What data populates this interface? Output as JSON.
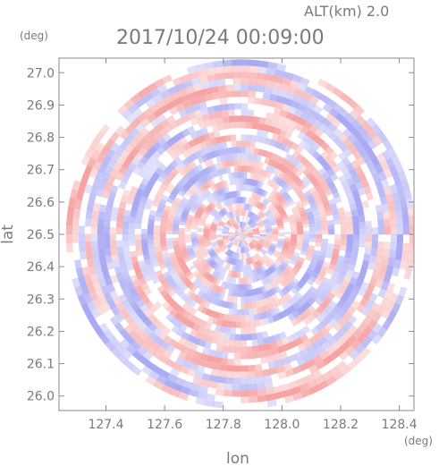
{
  "header": {
    "altitude_label": "ALT(km) 2.0",
    "timestamp": "2017/10/24 00:09:00"
  },
  "chart_data": {
    "type": "heatmap",
    "title": "2017/10/24 00:09:00",
    "xlabel": "lon",
    "ylabel": "lat",
    "x_unit": "(deg)",
    "y_unit": "(deg)",
    "xlim": [
      127.24,
      128.45
    ],
    "ylim": [
      25.955,
      27.045
    ],
    "x_ticks": [
      127.4,
      127.6,
      127.8,
      128.0,
      128.2,
      128.4
    ],
    "x_tick_labels": [
      "127.4",
      "127.6",
      "127.8",
      "128.0",
      "128.2",
      "128.4"
    ],
    "y_ticks": [
      26.0,
      26.1,
      26.2,
      26.3,
      26.4,
      26.5,
      26.6,
      26.7,
      26.8,
      26.9,
      27.0
    ],
    "y_tick_labels": [
      "26.0",
      "26.1",
      "26.2",
      "26.3",
      "26.4",
      "26.5",
      "26.6",
      "26.7",
      "26.8",
      "26.9",
      "27.0"
    ],
    "grid": false,
    "radar_center": {
      "lon": 127.86,
      "lat": 26.5
    },
    "colors": {
      "positive": "#f6a3a3",
      "negative": "#a9a9f4",
      "axis": "#8a8a8a"
    }
  }
}
